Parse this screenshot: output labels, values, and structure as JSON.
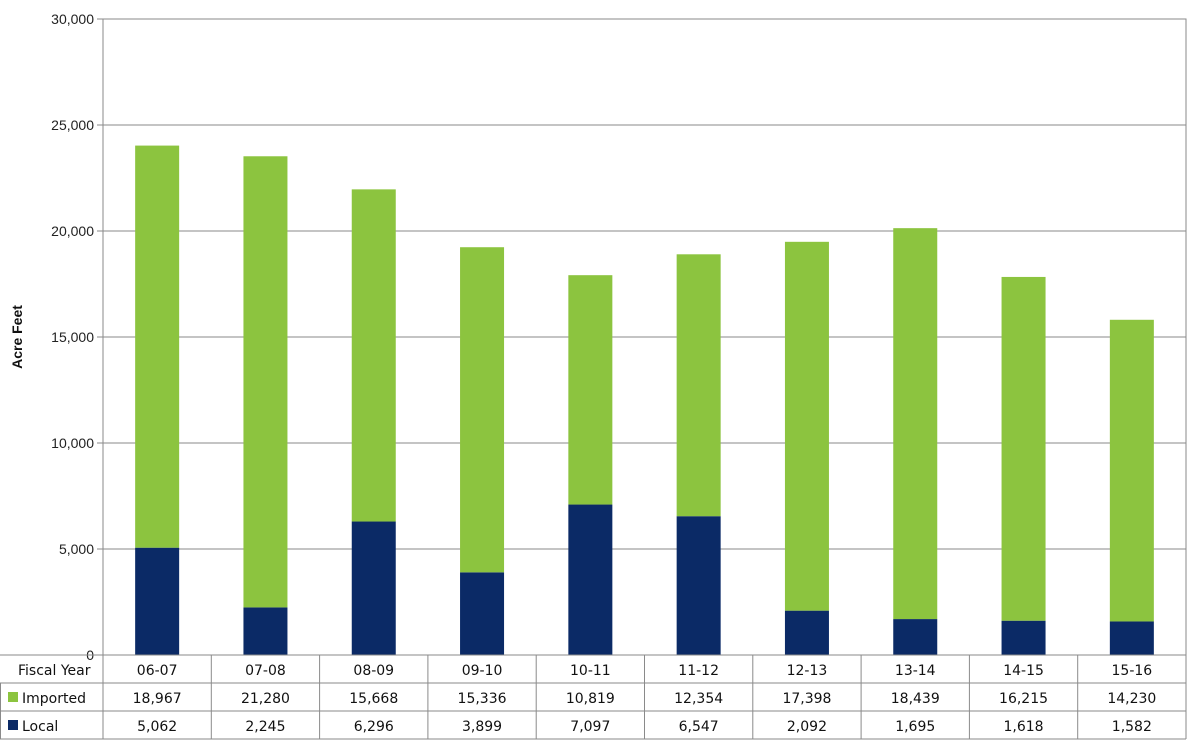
{
  "chart_data": {
    "type": "bar",
    "stacked": true,
    "categories": [
      "06-07",
      "07-08",
      "08-09",
      "09-10",
      "10-11",
      "11-12",
      "12-13",
      "13-14",
      "14-15",
      "15-16"
    ],
    "series": [
      {
        "name": "Local",
        "values": [
          5062,
          2245,
          6296,
          3899,
          7097,
          6547,
          2092,
          1695,
          1618,
          1582
        ],
        "color": "#0b2a66"
      },
      {
        "name": "Imported",
        "values": [
          18967,
          21280,
          15668,
          15336,
          10819,
          12354,
          17398,
          18439,
          16215,
          14230
        ],
        "color": "#8cc43f"
      }
    ],
    "table_rows": [
      {
        "label": "Imported",
        "series_index": 1
      },
      {
        "label": "Local",
        "series_index": 0
      }
    ],
    "xlabel": "Fiscal Year",
    "ylabel": "Acre Feet",
    "ylim": [
      0,
      30000
    ],
    "yticks": [
      0,
      5000,
      10000,
      15000,
      20000,
      25000,
      30000
    ],
    "ytick_labels": [
      "0",
      "5,000",
      "10,000",
      "15,000",
      "20,000",
      "25,000",
      "30,000"
    ],
    "grid": true,
    "legend": "data-table"
  }
}
